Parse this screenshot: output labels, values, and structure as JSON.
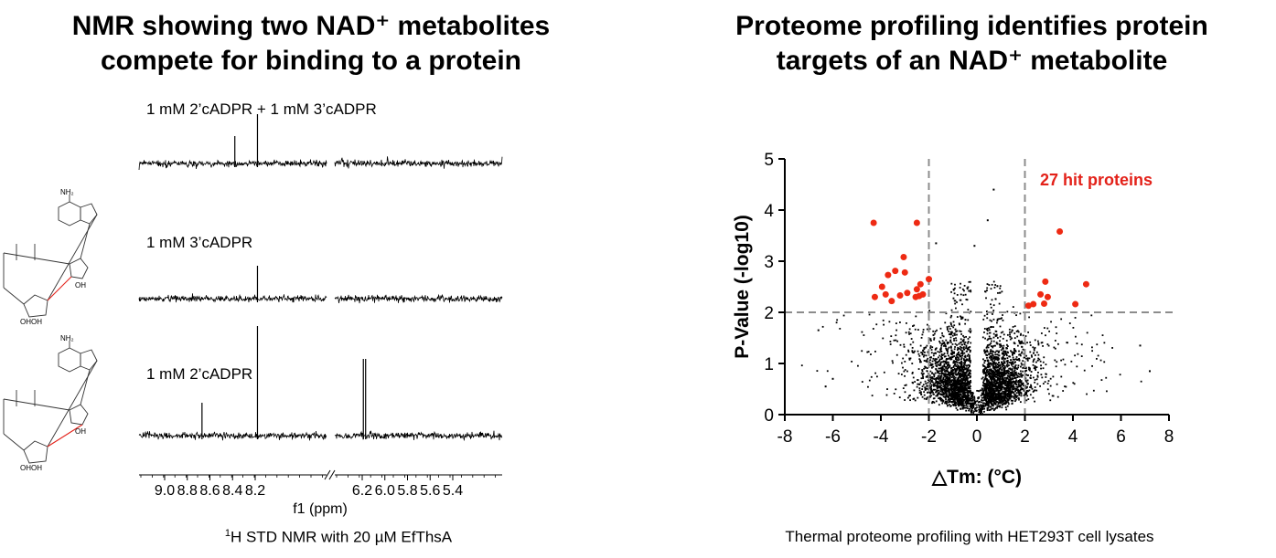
{
  "left_panel": {
    "title_line1": "NMR showing two NAD⁺ metabolites",
    "title_line2": "compete for binding to a protein",
    "caption_sup": "1",
    "caption": "H STD NMR with 20 µM EfThsA",
    "structure_labels": {
      "nh2": "NH₂",
      "oh": "OH",
      "ohoh": "OHOH"
    }
  },
  "right_panel": {
    "title_line1": "Proteome profiling identifies protein",
    "title_line2": "targets of an NAD⁺ metabolite",
    "caption": "Thermal proteome profiling with HET293T cell lysates"
  },
  "chart_data": [
    {
      "type": "line",
      "chart": "nmr-std-spectra",
      "xlabel": "f1 (ppm)",
      "x_ticks": [
        "9.0",
        "8.8",
        "8.6",
        "8.4",
        "8.2",
        "6.2",
        "6.0",
        "5.8",
        "5.6",
        "5.4"
      ],
      "axis_break": "between 8.2 and 6.2",
      "reversed_x": true,
      "series": [
        {
          "name": "1 mM 2’cADPR + 1 mM 3’cADPR",
          "peaks": [
            {
              "ppm": 8.38,
              "height": 0.25
            },
            {
              "ppm": 8.18,
              "height": 0.45
            }
          ]
        },
        {
          "name": "1 mM 3’cADPR",
          "peaks": [
            {
              "ppm": 8.18,
              "height": 0.3
            }
          ]
        },
        {
          "name": "1 mM 2’cADPR",
          "peaks": [
            {
              "ppm": 8.67,
              "height": 0.3
            },
            {
              "ppm": 8.18,
              "height": 1.0
            },
            {
              "ppm": 6.19,
              "height": 0.7
            },
            {
              "ppm": 6.17,
              "height": 0.7
            }
          ]
        }
      ]
    },
    {
      "type": "scatter",
      "chart": "volcano",
      "annotation": "27 hit proteins",
      "xlabel": "△Tm: (°C)",
      "ylabel": "P-Value (-log10)",
      "xlim": [
        -8,
        8
      ],
      "ylim": [
        0,
        5
      ],
      "x_ticks": [
        -8,
        -6,
        -4,
        -2,
        0,
        2,
        4,
        6,
        8
      ],
      "y_ticks": [
        0,
        1,
        2,
        3,
        4,
        5
      ],
      "thresholds": {
        "x": [
          -2,
          2
        ],
        "y": 2
      },
      "colors": {
        "hit": "#ee2a13",
        "background": "#000000",
        "threshold": "#8c8c8c",
        "annotation": "#e32119"
      },
      "hits": [
        {
          "x": -4.3,
          "y": 3.75
        },
        {
          "x": -2.5,
          "y": 3.75
        },
        {
          "x": -3.05,
          "y": 3.08
        },
        {
          "x": -3.4,
          "y": 2.81
        },
        {
          "x": -3.7,
          "y": 2.73
        },
        {
          "x": -3.0,
          "y": 2.78
        },
        {
          "x": -2.0,
          "y": 2.65
        },
        {
          "x": -2.35,
          "y": 2.55
        },
        {
          "x": -3.95,
          "y": 2.5
        },
        {
          "x": -3.2,
          "y": 2.33
        },
        {
          "x": -2.9,
          "y": 2.38
        },
        {
          "x": -2.5,
          "y": 2.45
        },
        {
          "x": -2.4,
          "y": 2.32
        },
        {
          "x": -4.25,
          "y": 2.3
        },
        {
          "x": -3.8,
          "y": 2.35
        },
        {
          "x": -3.55,
          "y": 2.22
        },
        {
          "x": -2.55,
          "y": 2.3
        },
        {
          "x": -2.25,
          "y": 2.35
        },
        {
          "x": 3.45,
          "y": 3.58
        },
        {
          "x": 4.55,
          "y": 2.55
        },
        {
          "x": 2.85,
          "y": 2.6
        },
        {
          "x": 2.65,
          "y": 2.35
        },
        {
          "x": 2.95,
          "y": 2.3
        },
        {
          "x": 2.8,
          "y": 2.17
        },
        {
          "x": 2.35,
          "y": 2.16
        },
        {
          "x": 2.15,
          "y": 2.13
        },
        {
          "x": 4.1,
          "y": 2.16
        }
      ],
      "background_points": {
        "count": 3500,
        "description": "non-significant proteins clustered around ΔTm 0"
      }
    }
  ]
}
